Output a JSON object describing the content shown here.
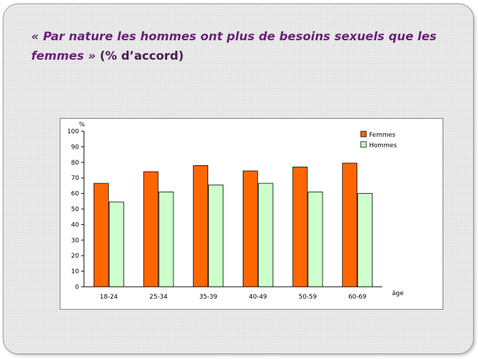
{
  "slide": {
    "title_quote": "« Par nature les hommes ont plus de besoins sexuels que les femmes »",
    "title_unit": "(% d’accord)"
  },
  "colors": {
    "femmes": "#ff6600",
    "hommes": "#ccffcc",
    "title": "#6b1f7a"
  },
  "chart_data": {
    "type": "bar",
    "title": "",
    "ylabel": "%",
    "xlabel": "âge",
    "categories": [
      "18-24",
      "25-34",
      "35-39",
      "40-49",
      "50-59",
      "60-69"
    ],
    "series": [
      {
        "name": "Femmes",
        "color": "#ff6600",
        "values": [
          66.5,
          74,
          78,
          74.5,
          77,
          79.5
        ]
      },
      {
        "name": "Hommes",
        "color": "#ccffcc",
        "values": [
          54.5,
          61,
          65.5,
          66.5,
          61,
          60
        ]
      }
    ],
    "ylim": [
      0,
      100
    ],
    "yticks": [
      0,
      10,
      20,
      30,
      40,
      50,
      60,
      70,
      80,
      90,
      100
    ],
    "grid": false,
    "legend_position": "top-right"
  }
}
